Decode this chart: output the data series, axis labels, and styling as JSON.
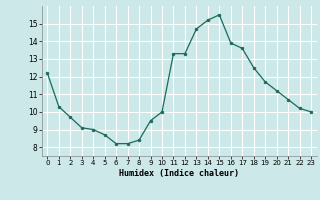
{
  "x": [
    0,
    1,
    2,
    3,
    4,
    5,
    6,
    7,
    8,
    9,
    10,
    11,
    12,
    13,
    14,
    15,
    16,
    17,
    18,
    19,
    20,
    21,
    22,
    23
  ],
  "y": [
    12.2,
    10.3,
    9.7,
    9.1,
    9.0,
    8.7,
    8.2,
    8.2,
    8.4,
    9.5,
    10.0,
    13.3,
    13.3,
    14.7,
    15.2,
    15.5,
    13.9,
    13.6,
    12.5,
    11.7,
    11.2,
    10.7,
    10.2,
    10.0
  ],
  "xlabel": "Humidex (Indice chaleur)",
  "ylim": [
    7.5,
    16.0
  ],
  "xlim": [
    -0.5,
    23.5
  ],
  "yticks": [
    8,
    9,
    10,
    11,
    12,
    13,
    14,
    15
  ],
  "xticks": [
    0,
    1,
    2,
    3,
    4,
    5,
    6,
    7,
    8,
    9,
    10,
    11,
    12,
    13,
    14,
    15,
    16,
    17,
    18,
    19,
    20,
    21,
    22,
    23
  ],
  "line_color": "#1a6b5a",
  "marker_color": "#1a6b5a",
  "bg_color": "#cce8e8",
  "grid_color": "#ffffff",
  "fig_bg": "#cce8e8"
}
